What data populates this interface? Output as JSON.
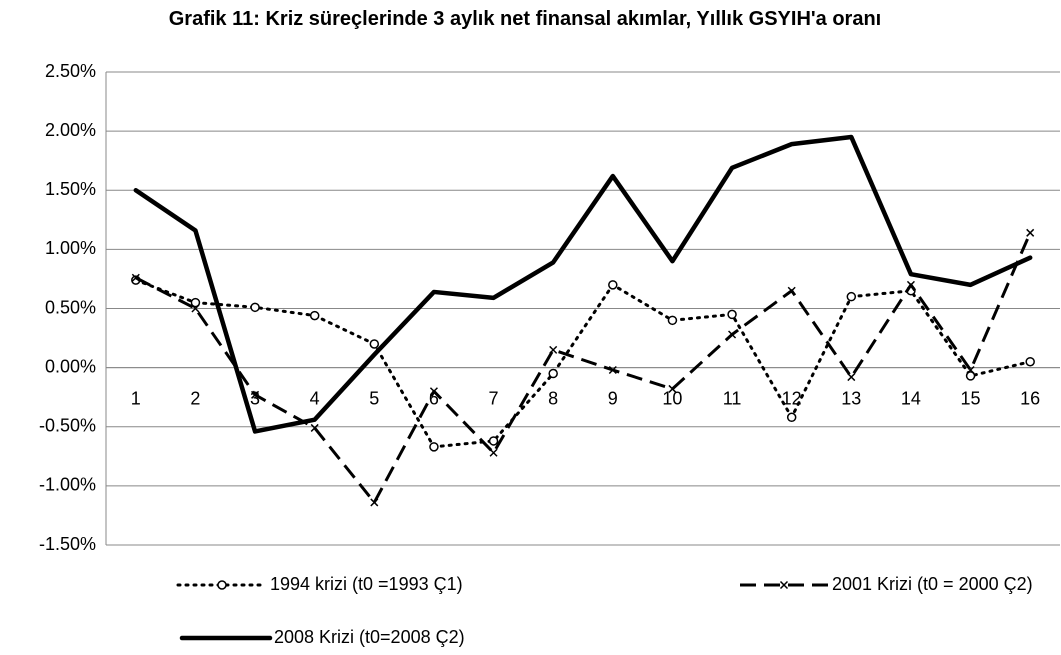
{
  "chart_data": {
    "type": "line",
    "title": "Grafik 11: Kriz süreçlerinde 3 aylık net finansal akımlar, Yıllık GSYIH'a oranı",
    "categories": [
      "1",
      "2",
      "3",
      "4",
      "5",
      "6",
      "7",
      "8",
      "9",
      "10",
      "11",
      "12",
      "13",
      "14",
      "15",
      "16"
    ],
    "series": [
      {
        "name": "1994 krizi (t0 =1993 Ç1)",
        "color": "#000000",
        "values": [
          0.74,
          0.55,
          0.51,
          0.44,
          0.2,
          -0.67,
          -0.62,
          -0.05,
          0.7,
          0.4,
          0.45,
          -0.42,
          0.6,
          0.65,
          -0.07,
          0.05
        ]
      },
      {
        "name": "2001 Krizi (t0 = 2000 Ç2)",
        "color": "#000000",
        "values": [
          0.76,
          0.5,
          -0.23,
          -0.51,
          -1.14,
          -0.2,
          -0.72,
          0.15,
          -0.02,
          -0.18,
          0.28,
          0.65,
          -0.08,
          0.7,
          -0.02,
          1.14
        ]
      },
      {
        "name": "2008 Krizi (t0=2008 Ç2)",
        "color": "#000000",
        "values": [
          1.5,
          1.16,
          -0.54,
          -0.44,
          0.11,
          0.64,
          0.59,
          0.89,
          1.62,
          0.9,
          1.69,
          1.89,
          1.95,
          0.79,
          0.7,
          0.93
        ]
      }
    ],
    "ylim": [
      -1.5,
      2.5
    ],
    "yticks": [
      {
        "value": -1.5,
        "label": "-1.50%"
      },
      {
        "value": -1.0,
        "label": "-1.00%"
      },
      {
        "value": -0.5,
        "label": "-0.50%"
      },
      {
        "value": 0,
        "label": "0.00%"
      },
      {
        "value": 0.5,
        "label": "0.50%"
      },
      {
        "value": 1.0,
        "label": "1.00%"
      },
      {
        "value": 1.5,
        "label": "1.50%"
      },
      {
        "value": 2.0,
        "label": "2.00%"
      },
      {
        "value": 2.5,
        "label": "2.50%"
      }
    ],
    "grid": true,
    "legend": "bottom"
  }
}
